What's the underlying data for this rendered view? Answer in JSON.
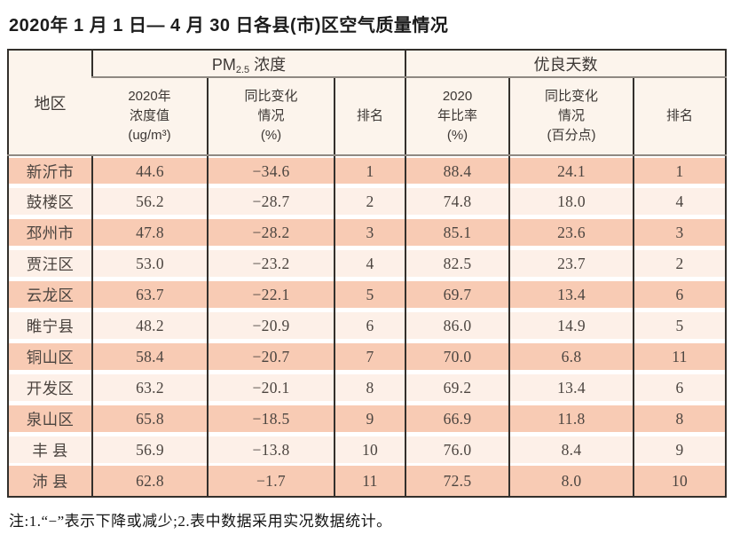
{
  "title": "2020年 1 月 1 日— 4 月 30 日各县(市)区空气质量情况",
  "note": "注:1.“−”表示下降或减少;2.表中数据采用实况数据统计。",
  "colors": {
    "stripe_salmon": "#f8cbb4",
    "stripe_light": "#fdf0e8",
    "header_bg": "#fcf4ec",
    "border_dark": "#33302c",
    "border_gray": "#8f8982"
  },
  "table": {
    "region_header": "地区",
    "pm25_group": {
      "prefix": "PM",
      "sub": "2.5",
      "suffix": " 浓度"
    },
    "good_days_header": "优良天数",
    "sub_headers": [
      "2020年\n浓度值\n(ug/m³)",
      "同比变化\n情况\n(%)",
      "排名",
      "2020\n年比率\n(%)",
      "同比变化\n情况\n(百分点)",
      "排名"
    ],
    "rows": [
      [
        "新沂市",
        "44.6",
        "−34.6",
        "1",
        "88.4",
        "24.1",
        "1"
      ],
      [
        "鼓楼区",
        "56.2",
        "−28.7",
        "2",
        "74.8",
        "18.0",
        "4"
      ],
      [
        "邳州市",
        "47.8",
        "−28.2",
        "3",
        "85.1",
        "23.6",
        "3"
      ],
      [
        "贾汪区",
        "53.0",
        "−23.2",
        "4",
        "82.5",
        "23.7",
        "2"
      ],
      [
        "云龙区",
        "63.7",
        "−22.1",
        "5",
        "69.7",
        "13.4",
        "6"
      ],
      [
        "睢宁县",
        "48.2",
        "−20.9",
        "6",
        "86.0",
        "14.9",
        "5"
      ],
      [
        "铜山区",
        "58.4",
        "−20.7",
        "7",
        "70.0",
        "6.8",
        "11"
      ],
      [
        "开发区",
        "63.2",
        "−20.1",
        "8",
        "69.2",
        "13.4",
        "6"
      ],
      [
        "泉山区",
        "65.8",
        "−18.5",
        "9",
        "66.9",
        "11.8",
        "8"
      ],
      [
        "丰 县",
        "56.9",
        "−13.8",
        "10",
        "76.0",
        "8.4",
        "9"
      ],
      [
        "沛 县",
        "62.8",
        "−1.7",
        "11",
        "72.5",
        "8.0",
        "10"
      ]
    ]
  }
}
